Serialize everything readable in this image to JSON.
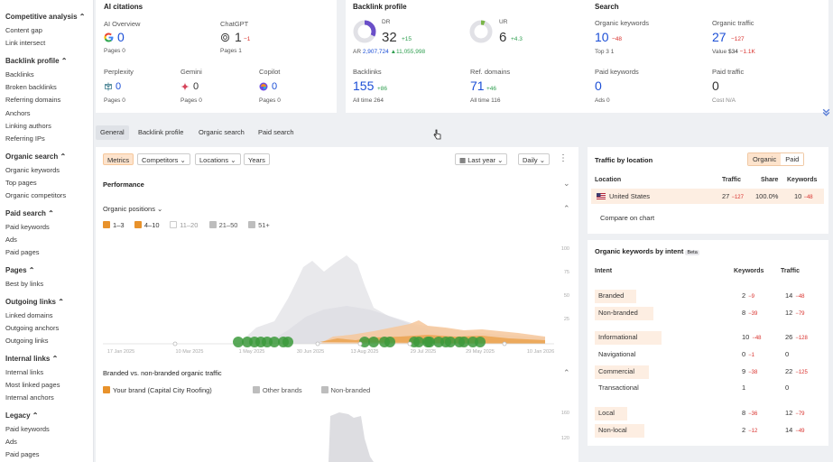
{
  "sidebar": {
    "sections": [
      {
        "title": "Competitive analysis ⌃",
        "items": [
          "Content gap",
          "Link intersect"
        ]
      },
      {
        "title": "Backlink profile ⌃",
        "items": [
          "Backlinks",
          "Broken backlinks",
          "Referring domains",
          "Anchors",
          "Linking authors",
          "Referring IPs"
        ]
      },
      {
        "title": "Organic search ⌃",
        "items": [
          "Organic keywords",
          "Top pages",
          "Organic competitors"
        ]
      },
      {
        "title": "Paid search ⌃",
        "items": [
          "Paid keywords",
          "Ads",
          "Paid pages"
        ]
      },
      {
        "title": "Pages ⌃",
        "items": [
          "Best by links"
        ]
      },
      {
        "title": "Outgoing links ⌃",
        "items": [
          "Linked domains",
          "Outgoing anchors",
          "Outgoing links"
        ]
      },
      {
        "title": "Internal links ⌃",
        "items": [
          "Internal links",
          "Most linked pages",
          "Internal anchors"
        ]
      },
      {
        "title": "Legacy ⌃",
        "items": [
          "Paid keywords",
          "Ads",
          "Paid pages"
        ]
      }
    ]
  },
  "ai_citations": {
    "title": "AI citations",
    "ai_overview": {
      "label": "AI Overview",
      "value": "0",
      "pages": "Pages 0"
    },
    "chatgpt": {
      "label": "ChatGPT",
      "value": "1",
      "delta": "−1",
      "pages": "Pages 1"
    },
    "perplexity": {
      "label": "Perplexity",
      "value": "0",
      "pages": "Pages 0"
    },
    "gemini": {
      "label": "Gemini",
      "value": "0",
      "pages": "Pages 0"
    },
    "copilot": {
      "label": "Copilot",
      "value": "0",
      "pages": "Pages 0"
    }
  },
  "backlink_profile": {
    "title": "Backlink profile",
    "dr": {
      "label": "DR",
      "value": "32",
      "delta": "+15",
      "dr_fraction": 0.32
    },
    "ur": {
      "label": "UR",
      "value": "6",
      "delta": "+4.3",
      "ur_fraction": 0.06
    },
    "ar_label": "AR",
    "ar_value": "2,907,724",
    "ar_delta": "▲11,055,998",
    "backlinks": {
      "label": "Backlinks",
      "value": "155",
      "delta": "+86",
      "sub": "All time 264"
    },
    "ref_domains": {
      "label": "Ref. domains",
      "value": "71",
      "delta": "+46",
      "sub": "All time 116"
    }
  },
  "search": {
    "title": "Search",
    "organic_keywords": {
      "label": "Organic keywords",
      "value": "10",
      "delta": "−48",
      "sub": "Top 3 1"
    },
    "organic_traffic": {
      "label": "Organic traffic",
      "value": "27",
      "delta": "−127",
      "sub_label": "Value",
      "sub_value": "$34",
      "sub_delta": "−1.1K"
    },
    "paid_keywords": {
      "label": "Paid keywords",
      "value": "0",
      "sub": "Ads 0"
    },
    "paid_traffic": {
      "label": "Paid traffic",
      "value": "0",
      "sub": "Cost N/A"
    }
  },
  "tabs": [
    "General",
    "Backlink profile",
    "Organic search",
    "Paid search"
  ],
  "toolbar": {
    "metrics": "Metrics",
    "competitors": "Competitors",
    "locations": "Locations",
    "years": "Years",
    "last_year": "Last year",
    "daily": "Daily"
  },
  "chart_panel": {
    "performance": "Performance",
    "organic_positions": "Organic positions",
    "position_filters": [
      {
        "label": "1–3",
        "state": "on"
      },
      {
        "label": "4–10",
        "state": "on"
      },
      {
        "label": "11–20",
        "state": "off"
      },
      {
        "label": "21–50",
        "state": "grey"
      },
      {
        "label": "51+",
        "state": "grey"
      }
    ],
    "branded_title": "Branded vs. non-branded organic traffic",
    "branded_filters": [
      {
        "label": "Your brand (Capital City Roofing)",
        "state": "on"
      },
      {
        "label": "Other brands",
        "state": "grey"
      },
      {
        "label": "Non-branded",
        "state": "grey"
      }
    ]
  },
  "chart_data": {
    "type": "area",
    "x_ticks": [
      "17 Jan 2025",
      "10 Mar 2025",
      "1 May 2025",
      "30 Jun 2025",
      "13 Aug 2025",
      "29 Jul 2025",
      "29 May 2025",
      "10 Jan 2026"
    ],
    "y_ticks": [
      "100",
      "75",
      "50",
      "25"
    ],
    "second_chart_y_ticks": [
      "160",
      "120"
    ],
    "colors": {
      "top3": "#e8922b",
      "top10": "#f6c79b",
      "grey": "#cfcfd4",
      "dot": "#3c9a3c"
    }
  },
  "traffic_by_location": {
    "title": "Traffic by location",
    "toggle": [
      "Organic",
      "Paid"
    ],
    "headers": [
      "Location",
      "Traffic",
      "Share",
      "Keywords"
    ],
    "row": {
      "flag": "US",
      "location": "United States",
      "traffic": "27",
      "traffic_delta": "−127",
      "share": "100.0%",
      "keywords": "10",
      "keywords_delta": "−48"
    },
    "compare": "Compare on chart"
  },
  "intent": {
    "title": "Organic keywords by intent",
    "beta": "Beta",
    "headers": [
      "Intent",
      "Keywords",
      "Traffic"
    ],
    "rows": [
      {
        "name": "Branded",
        "kw": "2",
        "kw_d": "−9",
        "tr": "14",
        "tr_d": "−48",
        "hl": true
      },
      {
        "name": "Non-branded",
        "kw": "8",
        "kw_d": "−39",
        "tr": "12",
        "tr_d": "−79",
        "hl": true
      },
      {
        "name": "Informational",
        "kw": "10",
        "kw_d": "−48",
        "tr": "26",
        "tr_d": "−128",
        "hl": true
      },
      {
        "name": "Navigational",
        "kw": "0",
        "kw_d": "−1",
        "tr": "0",
        "tr_d": "",
        "hl": false
      },
      {
        "name": "Commercial",
        "kw": "9",
        "kw_d": "−38",
        "tr": "22",
        "tr_d": "−125",
        "hl": true
      },
      {
        "name": "Transactional",
        "kw": "1",
        "kw_d": "",
        "tr": "0",
        "tr_d": "",
        "hl": false
      },
      {
        "name": "Local",
        "kw": "8",
        "kw_d": "−36",
        "tr": "12",
        "tr_d": "−79",
        "hl": true
      },
      {
        "name": "Non-local",
        "kw": "2",
        "kw_d": "−12",
        "tr": "14",
        "tr_d": "−49",
        "hl": true
      }
    ]
  }
}
